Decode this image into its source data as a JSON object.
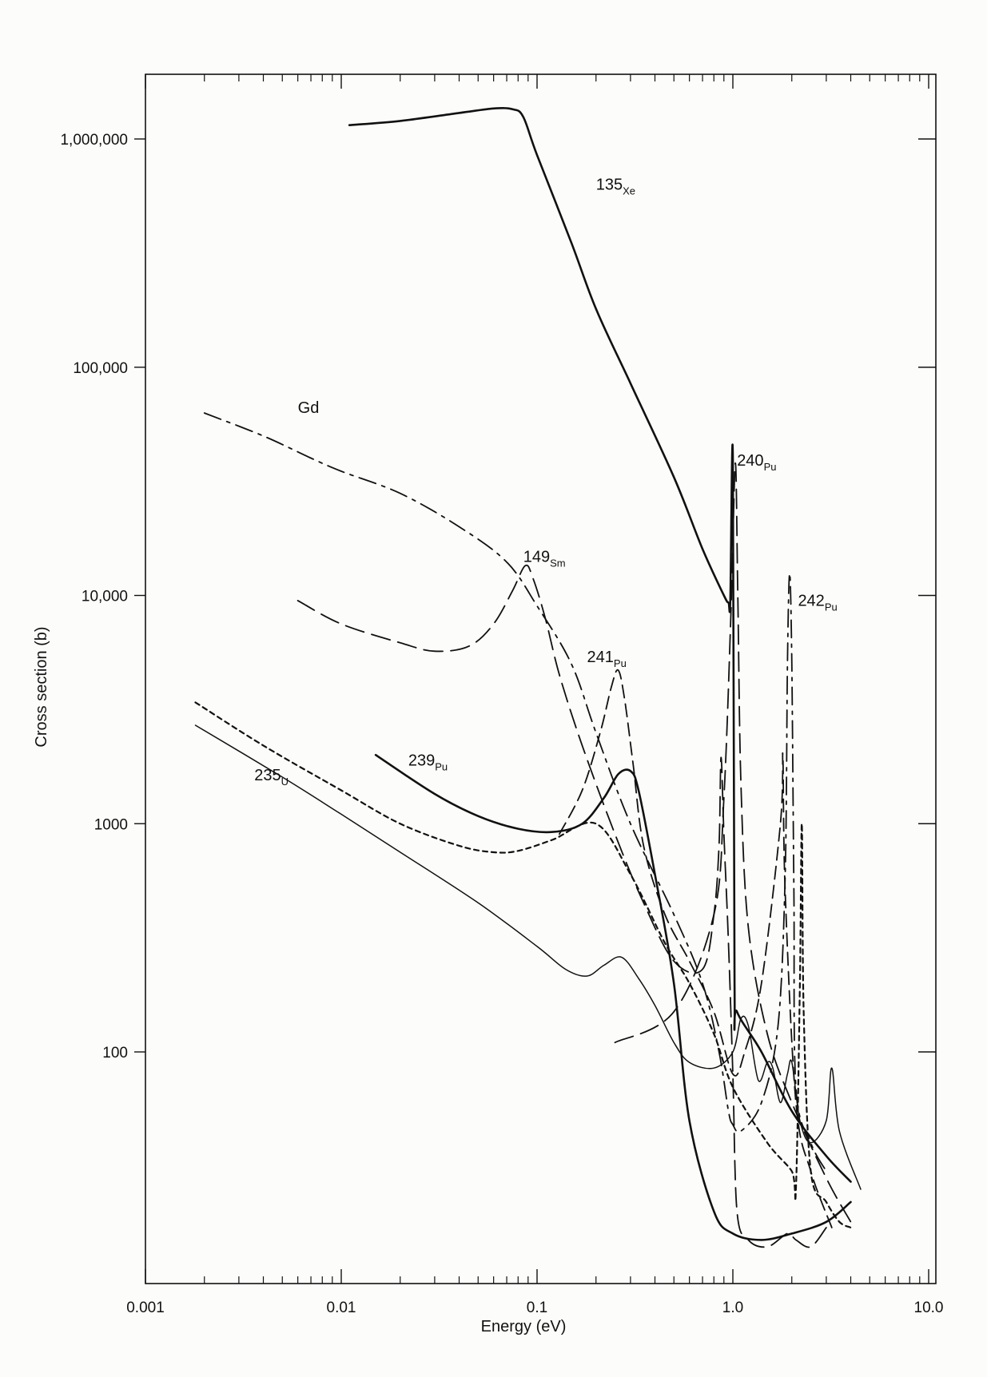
{
  "chart_data": {
    "type": "line",
    "xlabel": "Energy (eV)",
    "ylabel": "Cross section (b)",
    "xscale": "log",
    "yscale": "log",
    "xlim": [
      0.001,
      10.0
    ],
    "ylim": [
      12,
      2000000
    ],
    "grid": false,
    "x_ticks": [
      {
        "value": 0.001,
        "label": "0.001"
      },
      {
        "value": 0.01,
        "label": "0.01"
      },
      {
        "value": 0.1,
        "label": "0.1"
      },
      {
        "value": 1.0,
        "label": "1.0"
      },
      {
        "value": 10.0,
        "label": "10.0"
      }
    ],
    "y_ticks": [
      {
        "value": 100,
        "label": "100"
      },
      {
        "value": 1000,
        "label": "1000"
      },
      {
        "value": 10000,
        "label": "10,000"
      },
      {
        "value": 100000,
        "label": "100,000"
      },
      {
        "value": 1000000,
        "label": "1,000,000"
      }
    ],
    "series": [
      {
        "name": "135Xe",
        "label_main": "135",
        "label_sub": "Xe",
        "label_at": [
          0.2,
          600000
        ],
        "stroke": "solid",
        "width": 2.6,
        "points": [
          [
            0.011,
            1150000
          ],
          [
            0.02,
            1200000
          ],
          [
            0.04,
            1300000
          ],
          [
            0.06,
            1360000
          ],
          [
            0.075,
            1350000
          ],
          [
            0.085,
            1250000
          ],
          [
            0.1,
            850000
          ],
          [
            0.15,
            350000
          ],
          [
            0.2,
            180000
          ],
          [
            0.3,
            85000
          ],
          [
            0.5,
            33000
          ],
          [
            0.7,
            16000
          ],
          [
            0.9,
            10000
          ],
          [
            0.95,
            9300
          ],
          [
            0.97,
            9500
          ],
          [
            1.0,
            40000
          ],
          [
            1.02,
            200
          ],
          [
            1.05,
            150
          ],
          [
            1.4,
            100
          ],
          [
            2.0,
            55
          ],
          [
            3.0,
            35
          ],
          [
            4.0,
            27
          ]
        ]
      },
      {
        "name": "Gd",
        "label_main": "Gd",
        "label_sub": "",
        "label_at": [
          0.006,
          63000
        ],
        "stroke": "dashdot",
        "width": 1.8,
        "points": [
          [
            0.002,
            63000
          ],
          [
            0.004,
            50000
          ],
          [
            0.007,
            40000
          ],
          [
            0.01,
            35000
          ],
          [
            0.02,
            28000
          ],
          [
            0.04,
            20000
          ],
          [
            0.07,
            14000
          ],
          [
            0.1,
            9000
          ],
          [
            0.15,
            5000
          ],
          [
            0.2,
            2500
          ],
          [
            0.3,
            1000
          ],
          [
            0.5,
            400
          ],
          [
            0.7,
            200
          ],
          [
            0.85,
            100
          ],
          [
            0.95,
            55
          ],
          [
            1.0,
            48
          ],
          [
            1.1,
            45
          ],
          [
            1.4,
            60
          ],
          [
            1.7,
            130
          ],
          [
            1.85,
            600
          ],
          [
            1.9,
            5000
          ],
          [
            1.95,
            12500
          ],
          [
            2.0,
            5000
          ],
          [
            2.05,
            500
          ],
          [
            2.1,
            70
          ],
          [
            2.5,
            40
          ],
          [
            3.0,
            30
          ]
        ]
      },
      {
        "name": "149Sm",
        "label_main": "149",
        "label_sub": "Sm",
        "label_at": [
          0.085,
          14000
        ],
        "stroke": "longdash",
        "width": 1.8,
        "points": [
          [
            0.006,
            9500
          ],
          [
            0.01,
            7500
          ],
          [
            0.02,
            6200
          ],
          [
            0.03,
            5700
          ],
          [
            0.045,
            6000
          ],
          [
            0.06,
            7500
          ],
          [
            0.075,
            10500
          ],
          [
            0.087,
            13500
          ],
          [
            0.095,
            12000
          ],
          [
            0.11,
            8000
          ],
          [
            0.13,
            4500
          ],
          [
            0.17,
            2200
          ],
          [
            0.25,
            900
          ],
          [
            0.35,
            450
          ],
          [
            0.5,
            250
          ],
          [
            0.7,
            230
          ],
          [
            0.8,
            400
          ],
          [
            0.85,
            800
          ],
          [
            0.87,
            1950
          ],
          [
            0.9,
            900
          ],
          [
            0.95,
            300
          ],
          [
            1.0,
            80
          ],
          [
            1.05,
            20
          ],
          [
            1.2,
            15
          ],
          [
            1.5,
            14
          ],
          [
            1.9,
            16
          ],
          [
            2.1,
            15
          ],
          [
            2.5,
            14
          ],
          [
            3.0,
            17
          ]
        ]
      },
      {
        "name": "240Pu",
        "label_main": "240",
        "label_sub": "Pu",
        "label_at": [
          1.05,
          37000
        ],
        "stroke": "longdash",
        "width": 1.8,
        "points": [
          [
            0.25,
            110
          ],
          [
            0.5,
            150
          ],
          [
            0.8,
            400
          ],
          [
            0.9,
            1300
          ],
          [
            0.98,
            9000
          ],
          [
            1.03,
            38000
          ],
          [
            1.06,
            10000
          ],
          [
            1.1,
            1500
          ],
          [
            1.2,
            350
          ],
          [
            1.5,
            120
          ],
          [
            2.0,
            60
          ],
          [
            3.0,
            28
          ],
          [
            4.0,
            18
          ]
        ]
      },
      {
        "name": "241Pu",
        "label_main": "241",
        "label_sub": "Pu",
        "label_at": [
          0.18,
          5100
        ],
        "stroke": "dashed",
        "width": 1.8,
        "points": [
          [
            0.13,
            900
          ],
          [
            0.17,
            1400
          ],
          [
            0.21,
            2500
          ],
          [
            0.24,
            4000
          ],
          [
            0.26,
            4700
          ],
          [
            0.28,
            3500
          ],
          [
            0.31,
            1800
          ],
          [
            0.35,
            800
          ],
          [
            0.45,
            400
          ],
          [
            0.6,
            250
          ],
          [
            0.8,
            150
          ],
          [
            1.0,
            80
          ],
          [
            1.15,
            100
          ],
          [
            1.4,
            200
          ],
          [
            1.75,
            1000
          ],
          [
            1.8,
            2000
          ],
          [
            1.85,
            500
          ],
          [
            2.1,
            60
          ],
          [
            2.5,
            30
          ],
          [
            3.2,
            17
          ]
        ]
      },
      {
        "name": "239Pu",
        "label_main": "239",
        "label_sub": "Pu",
        "label_at": [
          0.022,
          1800
        ],
        "stroke": "solid",
        "width": 2.6,
        "points": [
          [
            0.015,
            2000
          ],
          [
            0.03,
            1350
          ],
          [
            0.05,
            1080
          ],
          [
            0.08,
            950
          ],
          [
            0.12,
            920
          ],
          [
            0.17,
            1000
          ],
          [
            0.22,
            1300
          ],
          [
            0.26,
            1650
          ],
          [
            0.3,
            1700
          ],
          [
            0.33,
            1400
          ],
          [
            0.4,
            600
          ],
          [
            0.5,
            200
          ],
          [
            0.6,
            50
          ],
          [
            0.8,
            20
          ],
          [
            1.0,
            16
          ],
          [
            1.4,
            15
          ],
          [
            2.0,
            16
          ],
          [
            3.0,
            18
          ],
          [
            4.0,
            22
          ]
        ]
      },
      {
        "name": "235U",
        "label_main": "235",
        "label_sub": "U",
        "label_at": [
          0.0036,
          1550
        ],
        "stroke": "solid",
        "width": 1.5,
        "points": [
          [
            0.0018,
            2700
          ],
          [
            0.005,
            1600
          ],
          [
            0.01,
            1100
          ],
          [
            0.02,
            750
          ],
          [
            0.05,
            450
          ],
          [
            0.1,
            290
          ],
          [
            0.14,
            230
          ],
          [
            0.18,
            215
          ],
          [
            0.22,
            240
          ],
          [
            0.27,
            260
          ],
          [
            0.33,
            210
          ],
          [
            0.4,
            160
          ],
          [
            0.5,
            110
          ],
          [
            0.6,
            90
          ],
          [
            0.8,
            85
          ],
          [
            1.0,
            100
          ],
          [
            1.1,
            140
          ],
          [
            1.2,
            130
          ],
          [
            1.35,
            75
          ],
          [
            1.5,
            90
          ],
          [
            1.6,
            85
          ],
          [
            1.75,
            60
          ],
          [
            1.9,
            80
          ],
          [
            2.0,
            90
          ],
          [
            2.2,
            50
          ],
          [
            2.5,
            40
          ],
          [
            3.0,
            50
          ],
          [
            3.2,
            85
          ],
          [
            3.5,
            45
          ],
          [
            4.5,
            25
          ]
        ]
      },
      {
        "name": "242Pu",
        "label_main": "242",
        "label_sub": "Pu",
        "label_at": [
          2.15,
          9000
        ],
        "stroke": "dotted",
        "width": 2.2,
        "points": [
          [
            0.0018,
            3400
          ],
          [
            0.004,
            2200
          ],
          [
            0.01,
            1400
          ],
          [
            0.02,
            1000
          ],
          [
            0.04,
            800
          ],
          [
            0.06,
            750
          ],
          [
            0.08,
            760
          ],
          [
            0.12,
            850
          ],
          [
            0.2,
            1000
          ],
          [
            0.3,
            600
          ],
          [
            0.45,
            300
          ],
          [
            0.6,
            200
          ],
          [
            0.8,
            120
          ],
          [
            1.0,
            70
          ],
          [
            1.5,
            40
          ],
          [
            2.0,
            30
          ],
          [
            2.1,
            25
          ],
          [
            2.2,
            200
          ],
          [
            2.25,
            1000
          ],
          [
            2.3,
            150
          ],
          [
            2.5,
            30
          ],
          [
            3.0,
            22
          ],
          [
            3.5,
            18
          ],
          [
            4.0,
            17
          ]
        ]
      }
    ]
  }
}
